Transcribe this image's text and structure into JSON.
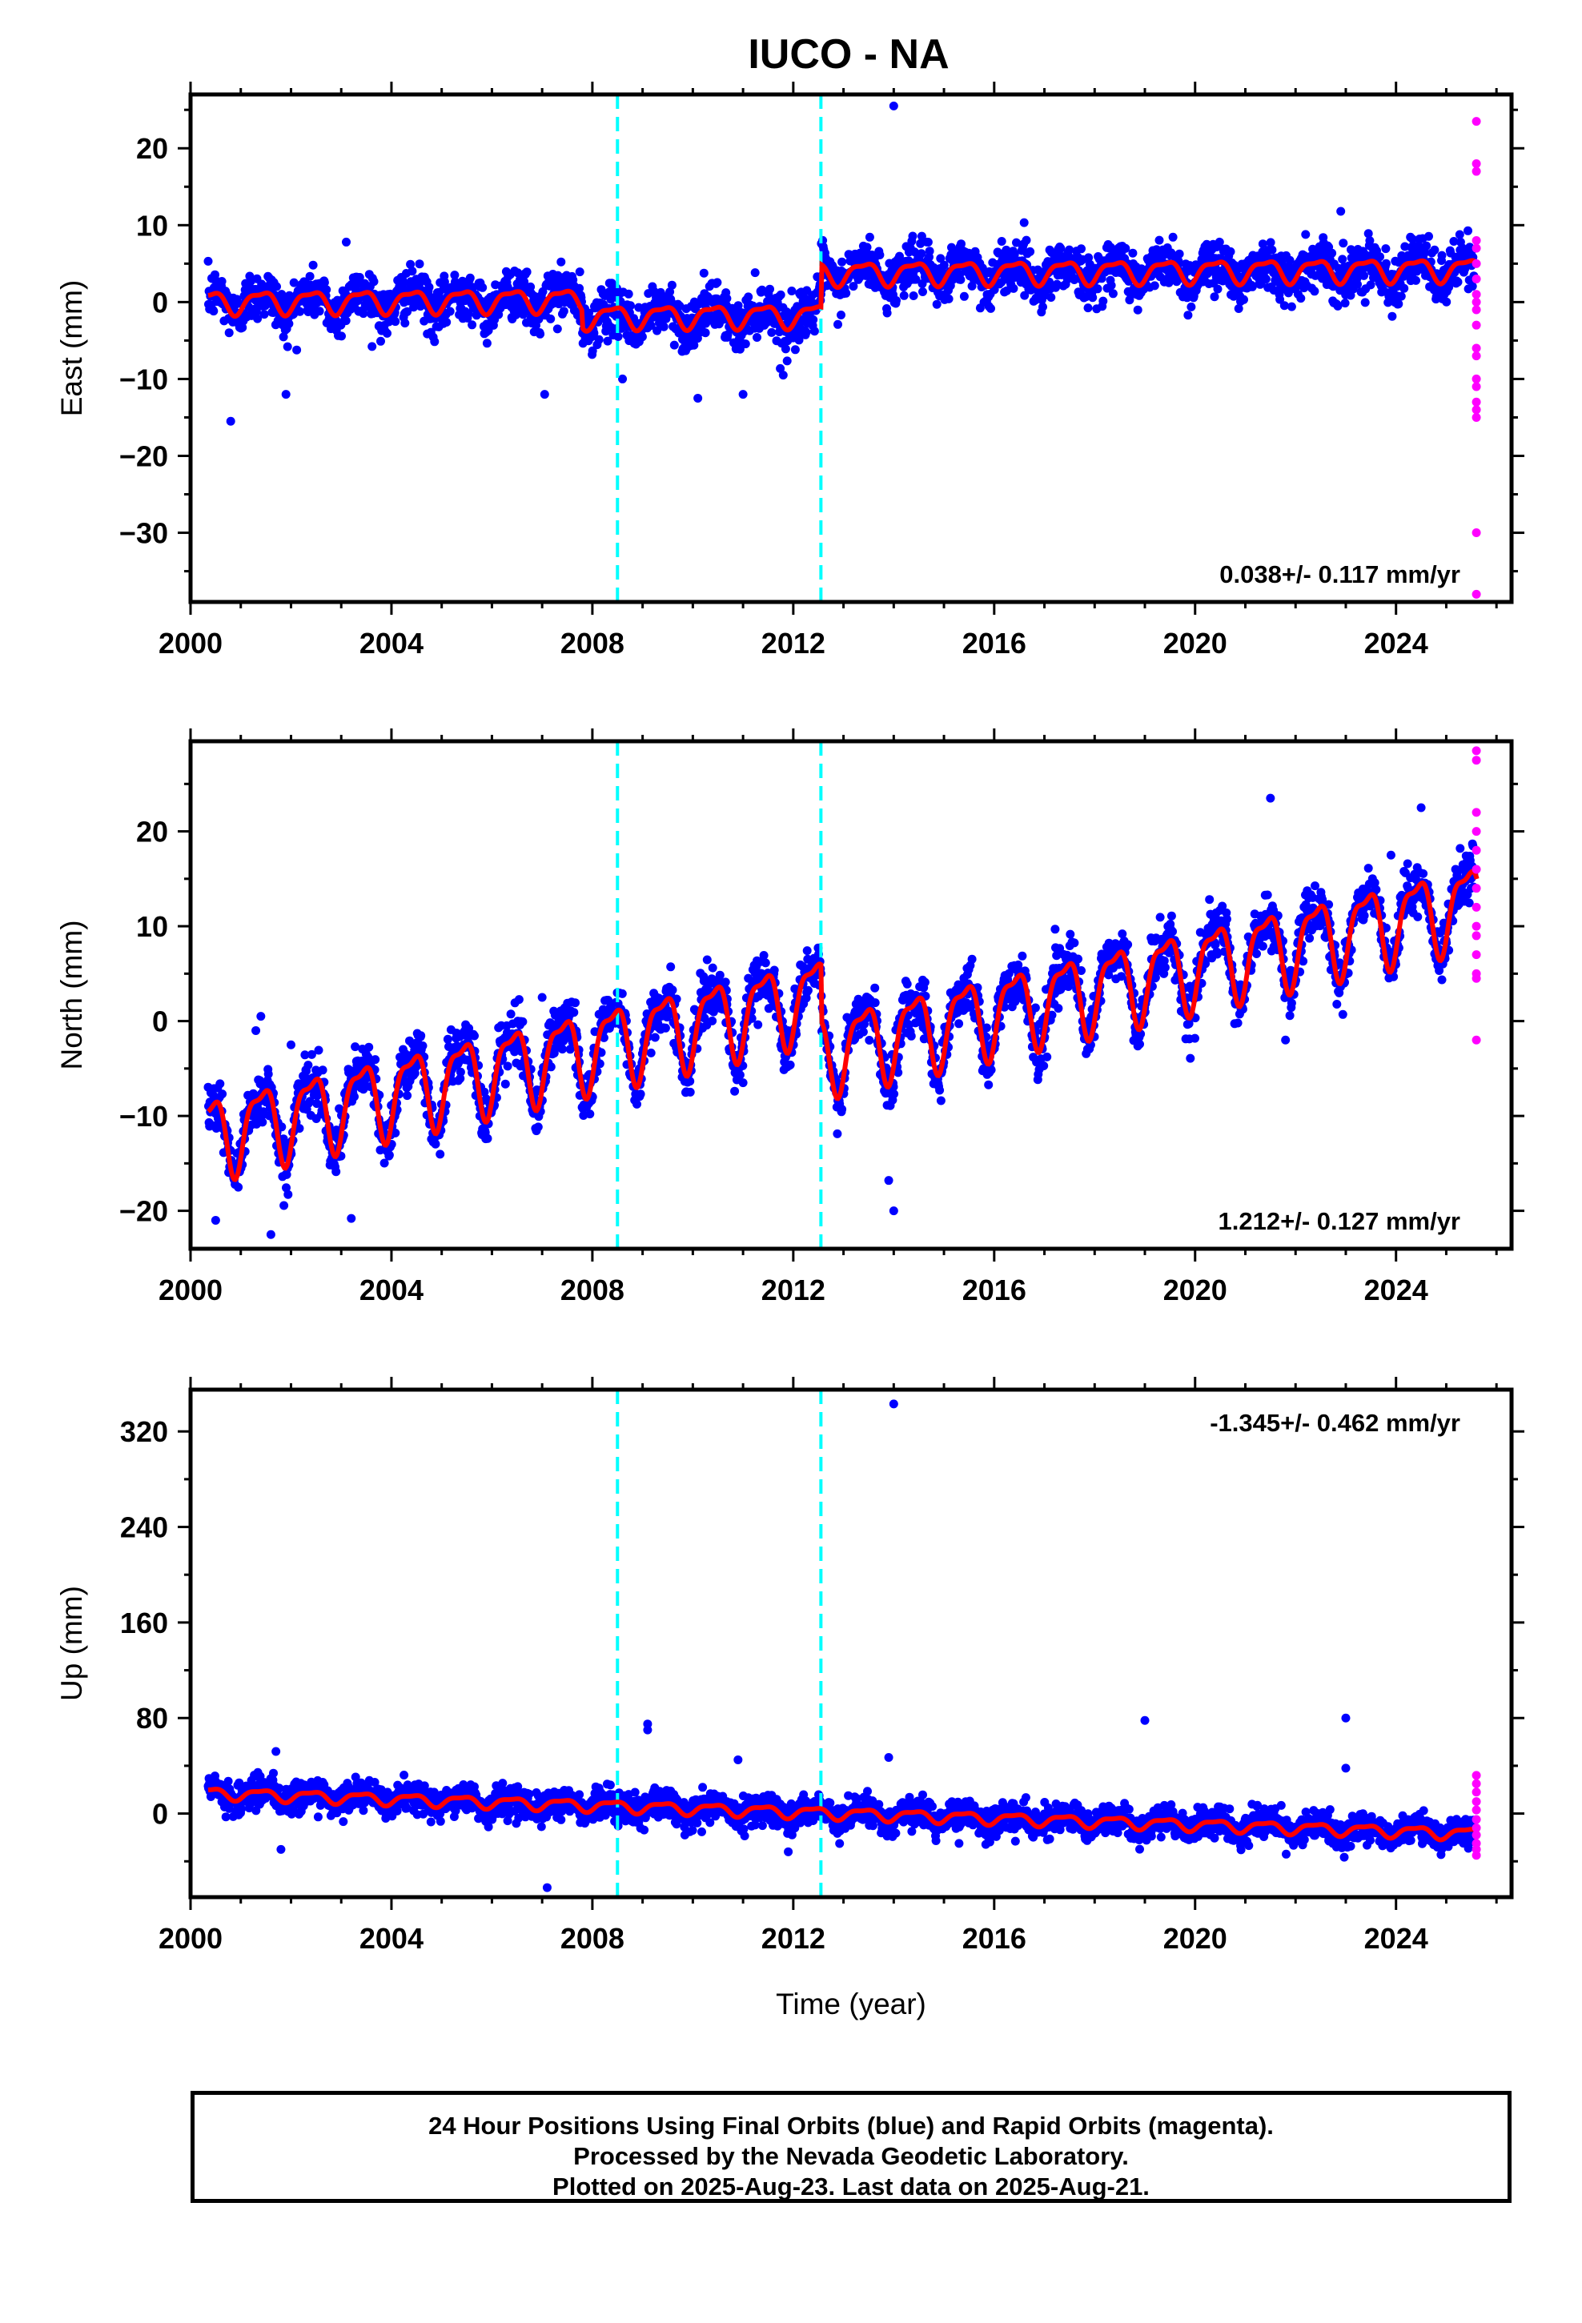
{
  "title": "IUCO - NA",
  "footer": {
    "line1": "24 Hour Positions Using Final Orbits (blue) and Rapid Orbits (magenta).",
    "line2": "Processed by the Nevada Geodetic Laboratory.",
    "line3": "Plotted on 2025-Aug-23. Last data on 2025-Aug-21."
  },
  "colors": {
    "final_orbits": "#0000ff",
    "rapid_orbits": "#ff00ff",
    "model_fit": "#ff0000",
    "offsets": "#00ffff"
  },
  "chart_data": [
    {
      "type": "scatter",
      "ylabel": "East (mm)",
      "xlabel": "",
      "xlim": [
        2000,
        2026.3
      ],
      "ylim": [
        -39,
        27
      ],
      "xticks": [
        2000,
        2004,
        2008,
        2012,
        2016,
        2020,
        2024
      ],
      "yticks": [
        -30,
        -20,
        -10,
        0,
        10,
        20
      ],
      "yminor": 5,
      "rate_label": "0.038+/- 0.117 mm/yr",
      "rate_position": "bottom-right",
      "offset_epochs": [
        2008.5,
        2012.55
      ],
      "series": [
        {
          "role": "final_orbits",
          "span": [
            2000.35,
            2025.55
          ],
          "trend_start": 0.0,
          "rate": 0.038,
          "seasonal_amp": 1.4,
          "noise_sd": 1.6,
          "steps": [
            {
              "at": 2007.8,
              "dy": -2.2
            },
            {
              "at": 2012.55,
              "dy": 5.5
            }
          ],
          "outliers": [
            [
              2000.8,
              -15.5
            ],
            [
              2001.9,
              -12.0
            ],
            [
              2007.05,
              -12.0
            ],
            [
              2008.6,
              -10.0
            ],
            [
              2010.1,
              -12.5
            ],
            [
              2011.0,
              -12.0
            ],
            [
              2011.8,
              -9.5
            ],
            [
              2014.0,
              25.5
            ],
            [
              2022.9,
              11.8
            ],
            [
              2022.2,
              8.8
            ],
            [
              2003.1,
              7.8
            ]
          ]
        },
        {
          "role": "rapid_orbits",
          "x": 2025.6,
          "values": [
            23.5,
            18,
            17,
            8,
            7,
            5,
            3,
            1,
            0,
            -1,
            -3,
            -6,
            -7,
            -10,
            -11,
            -13,
            -14,
            -15,
            -30,
            -38
          ]
        }
      ]
    },
    {
      "type": "scatter",
      "ylabel": "North (mm)",
      "xlabel": "",
      "xlim": [
        2000,
        2026.3
      ],
      "ylim": [
        -24,
        29.5
      ],
      "xticks": [
        2000,
        2004,
        2008,
        2012,
        2016,
        2020,
        2024
      ],
      "yticks": [
        -20,
        -10,
        0,
        10,
        20
      ],
      "yminor": 5,
      "rate_label": "1.212+/- 0.127 mm/yr",
      "rate_position": "bottom-right",
      "offset_epochs": [
        2008.5,
        2012.55
      ],
      "series": [
        {
          "role": "final_orbits",
          "span": [
            2000.35,
            2025.55
          ],
          "trend_start": -12.0,
          "rate": 1.212,
          "seasonal_amp": 4.0,
          "noise_sd": 1.4,
          "steps": [
            {
              "at": 2012.55,
              "dy": -6.0
            }
          ],
          "outliers": [
            [
              2001.4,
              0.5
            ],
            [
              2001.3,
              -1.0
            ],
            [
              2002.0,
              -2.5
            ],
            [
              2000.5,
              -21
            ],
            [
              2003.2,
              -20.8
            ],
            [
              2001.6,
              -22.5
            ],
            [
              2007.0,
              2.5
            ],
            [
              2013.9,
              -16.8
            ],
            [
              2014.0,
              -20.0
            ],
            [
              2011.0,
              -6.5
            ],
            [
              2021.5,
              23.5
            ],
            [
              2024.5,
              22.5
            ],
            [
              2023.9,
              17.5
            ],
            [
              2021.8,
              -2.0
            ]
          ]
        },
        {
          "role": "rapid_orbits",
          "x": 2025.6,
          "values": [
            28.5,
            27.5,
            22,
            20,
            18,
            16,
            14,
            12,
            10,
            9,
            7,
            5,
            4.5,
            -2
          ]
        }
      ]
    },
    {
      "type": "scatter",
      "ylabel": "Up (mm)",
      "xlabel": "Time (year)",
      "xlim": [
        2000,
        2026.3
      ],
      "ylim": [
        -70,
        355
      ],
      "xticks": [
        2000,
        2004,
        2008,
        2012,
        2016,
        2020,
        2024
      ],
      "yticks": [
        0,
        80,
        160,
        240,
        320
      ],
      "yminor": 40,
      "rate_label": "-1.345+/- 0.462 mm/yr",
      "rate_position": "top-right",
      "offset_epochs": [
        2008.5,
        2012.55
      ],
      "series": [
        {
          "role": "final_orbits",
          "span": [
            2000.35,
            2025.55
          ],
          "trend_start": 17.0,
          "rate": -1.345,
          "seasonal_amp": 4.5,
          "noise_sd": 6.0,
          "steps": [],
          "outliers": [
            [
              2007.1,
              -62
            ],
            [
              2009.1,
              75
            ],
            [
              2009.1,
              70
            ],
            [
              2010.9,
              45
            ],
            [
              2014.0,
              343
            ],
            [
              2013.9,
              47
            ],
            [
              2019.0,
              78
            ],
            [
              2023.0,
              80
            ],
            [
              2023.0,
              38
            ],
            [
              2001.7,
              52
            ],
            [
              2001.8,
              -30
            ],
            [
              2011.9,
              -32
            ],
            [
              2015.3,
              -25
            ]
          ]
        },
        {
          "role": "rapid_orbits",
          "x": 2025.6,
          "values": [
            32,
            25,
            18,
            10,
            3,
            -5,
            -12,
            -18,
            -25,
            -30,
            -35
          ]
        }
      ]
    }
  ]
}
